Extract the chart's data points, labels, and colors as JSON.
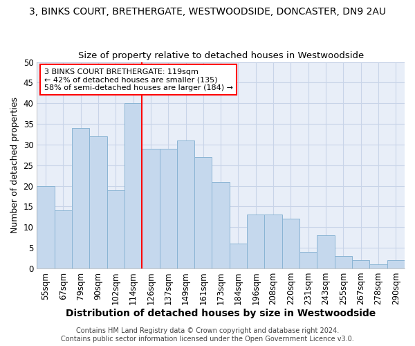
{
  "title1": "3, BINKS COURT, BRETHERGATE, WESTWOODSIDE, DONCASTER, DN9 2AU",
  "title2": "Size of property relative to detached houses in Westwoodside",
  "xlabel": "Distribution of detached houses by size in Westwoodside",
  "ylabel": "Number of detached properties",
  "categories": [
    "55sqm",
    "67sqm",
    "79sqm",
    "90sqm",
    "102sqm",
    "114sqm",
    "126sqm",
    "137sqm",
    "149sqm",
    "161sqm",
    "173sqm",
    "184sqm",
    "196sqm",
    "208sqm",
    "220sqm",
    "231sqm",
    "243sqm",
    "255sqm",
    "267sqm",
    "278sqm",
    "290sqm"
  ],
  "values": [
    20,
    14,
    34,
    32,
    19,
    40,
    29,
    29,
    31,
    27,
    21,
    6,
    13,
    13,
    12,
    4,
    8,
    3,
    2,
    1,
    2
  ],
  "bar_color": "#c5d8ed",
  "bar_edge_color": "#8ab4d4",
  "vline_x": 5.5,
  "vline_color": "red",
  "annotation_line1": "3 BINKS COURT BRETHERGATE: 119sqm",
  "annotation_line2": "← 42% of detached houses are smaller (135)",
  "annotation_line3": "58% of semi-detached houses are larger (184) →",
  "annotation_box_color": "white",
  "annotation_box_edge_color": "red",
  "ylim": [
    0,
    50
  ],
  "yticks": [
    0,
    5,
    10,
    15,
    20,
    25,
    30,
    35,
    40,
    45,
    50
  ],
  "grid_color": "#c8d4e8",
  "background_color": "#e8eef8",
  "footer1": "Contains HM Land Registry data © Crown copyright and database right 2024.",
  "footer2": "Contains public sector information licensed under the Open Government Licence v3.0.",
  "title1_fontsize": 10,
  "title2_fontsize": 9.5,
  "xlabel_fontsize": 10,
  "ylabel_fontsize": 9,
  "tick_fontsize": 8.5,
  "annot_fontsize": 8,
  "footer_fontsize": 7
}
